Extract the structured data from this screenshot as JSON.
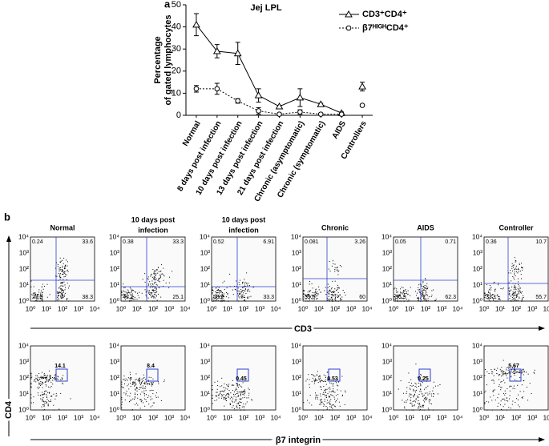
{
  "panel_labels": [
    "a",
    "b"
  ],
  "chart_data": {
    "type": "line",
    "title": "Jej LPL",
    "y_label": [
      "Percentage",
      "of gated lymphocytes"
    ],
    "categories": [
      "Normal",
      "8 days post infection",
      "10 days post infection",
      "13 days post infection",
      "21 days post infection",
      "Chronic (asymptomatic)",
      "Chronic (symptomatic)",
      "AIDS",
      "Controllers"
    ],
    "series": [
      {
        "name": "CD3⁺CD4⁺",
        "color": "#000000",
        "marker": "triangle",
        "line_style": "solid",
        "values": [
          41,
          29,
          28,
          9,
          4,
          8,
          5,
          1,
          13
        ],
        "errors": [
          5,
          3,
          5,
          3,
          0.5,
          4,
          0.5,
          0.5,
          2
        ]
      },
      {
        "name": "β7ᴴᴵᴳᴴCD4⁺",
        "color": "#000000",
        "marker": "circle",
        "line_style": "dotted",
        "values": [
          12,
          12,
          6.5,
          2,
          0.5,
          1.5,
          0.5,
          0.5,
          4.5
        ],
        "errors": [
          1.5,
          2.5,
          1,
          1.5,
          0.3,
          1,
          0.3,
          0.3,
          0.5
        ]
      }
    ],
    "ylim": [
      0,
      50
    ],
    "yticks": [
      0,
      10,
      20,
      30,
      40,
      50
    ]
  },
  "flow": {
    "y_label": "CD4",
    "x_labels": [
      "CD3",
      "β7 integrin"
    ],
    "ticks": [
      "10⁰",
      "10¹",
      "10²",
      "10³",
      "10⁴"
    ],
    "plots": [
      {
        "title": [
          "Normal"
        ],
        "quadrants": [
          0.24,
          33.6,
          27.9,
          38.3
        ],
        "gate": 14.1
      },
      {
        "title": [
          "10 days post",
          "infection"
        ],
        "quadrants": [
          0.38,
          33.3,
          41.2,
          25.1
        ],
        "gate": 8.4
      },
      {
        "title": [
          "10 days post",
          "infection"
        ],
        "quadrants": [
          0.52,
          6.91,
          59.2,
          33.3
        ],
        "gate": 0.45
      },
      {
        "title": [
          "Chronic"
        ],
        "quadrants": [
          0.081,
          3.26,
          39.6,
          60
        ],
        "gate": 0.53
      },
      {
        "title": [
          "AIDS"
        ],
        "quadrants": [
          0.05,
          0.71,
          36.9,
          62.3
        ],
        "gate": 0.25
      },
      {
        "title": [
          "Controller"
        ],
        "quadrants": [
          0.36,
          10.7,
          33.1,
          55.7
        ],
        "gate": 5.67
      }
    ]
  }
}
